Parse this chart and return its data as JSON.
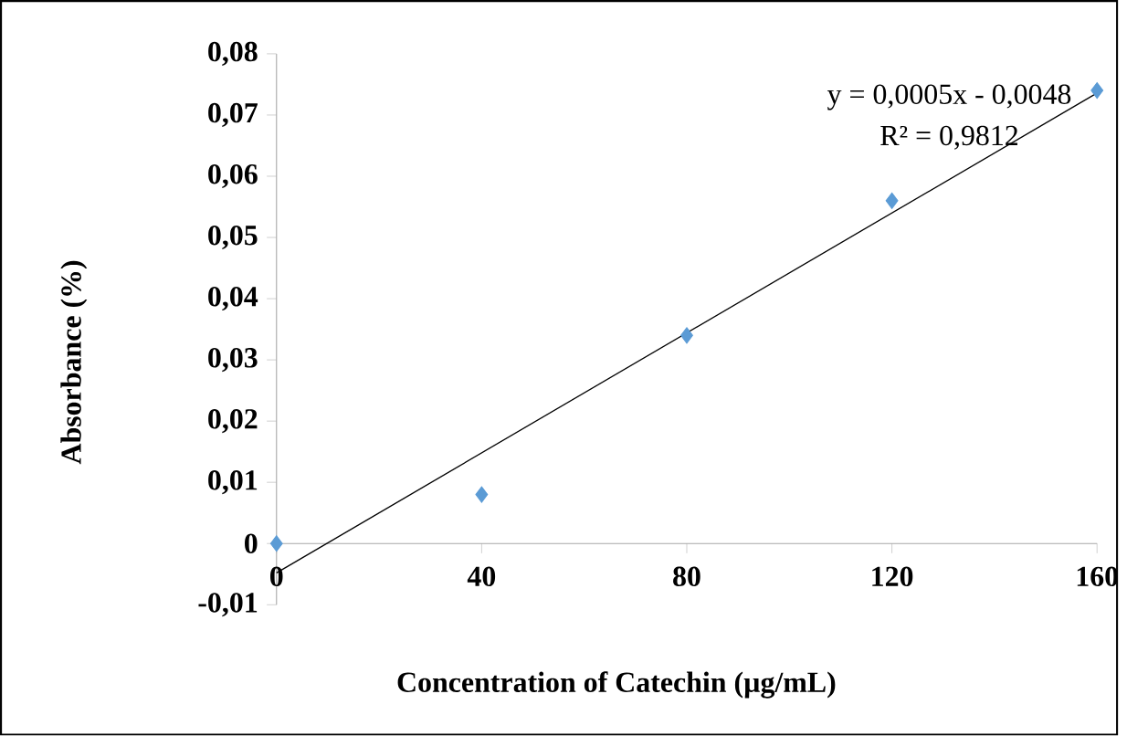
{
  "chart_data": {
    "type": "scatter",
    "xlabel": "Concentration of Catechin (µg/mL)",
    "ylabel": "Absorbance (%)",
    "annotations": [
      "y = 0,0005x - 0,0048",
      "R² = 0,9812"
    ],
    "xlim": [
      0,
      160
    ],
    "ylim": [
      -0.01,
      0.08
    ],
    "xticks": [
      0,
      40,
      80,
      120,
      160
    ],
    "yticks": [
      {
        "value": -0.01,
        "label": "-0,01"
      },
      {
        "value": 0,
        "label": "0"
      },
      {
        "value": 0.01,
        "label": "0,01"
      },
      {
        "value": 0.02,
        "label": "0,02"
      },
      {
        "value": 0.03,
        "label": "0,03"
      },
      {
        "value": 0.04,
        "label": "0,04"
      },
      {
        "value": 0.05,
        "label": "0,05"
      },
      {
        "value": 0.06,
        "label": "0,06"
      },
      {
        "value": 0.07,
        "label": "0,07"
      },
      {
        "value": 0.08,
        "label": "0,08"
      }
    ],
    "marker": "diamond",
    "series": [
      {
        "color": "#5b9bd5",
        "x": [
          0,
          40,
          80,
          120,
          160
        ],
        "values": [
          0,
          0.008,
          0.034,
          0.056,
          0.074
        ]
      },
      {
        "type": "line",
        "color": "#000000",
        "marker": "none",
        "x": [
          0,
          160
        ],
        "values": [
          -0.0048,
          0.0736
        ]
      }
    ]
  }
}
